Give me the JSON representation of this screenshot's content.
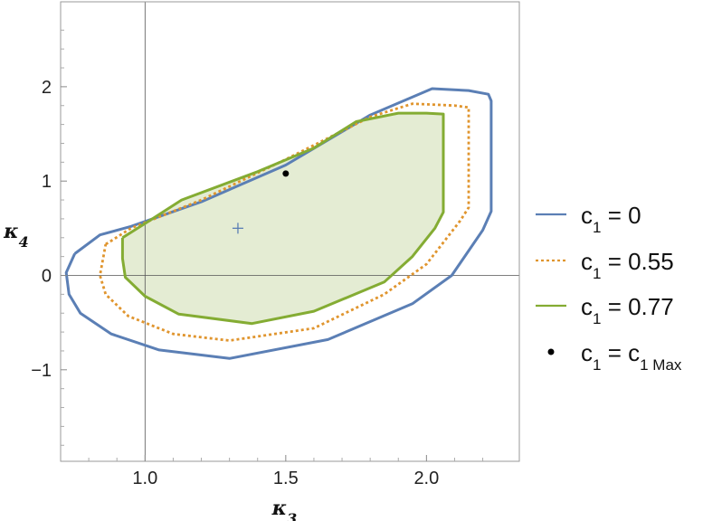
{
  "chart_data": {
    "type": "line",
    "xlabel": "κ3",
    "ylabel": "κ4",
    "xlim": [
      0.7,
      2.33
    ],
    "ylim": [
      -1.97,
      2.9
    ],
    "x_ticks": [
      1.0,
      1.5,
      2.0
    ],
    "x_tick_labels": [
      "1.0",
      "1.5",
      "2.0"
    ],
    "y_ticks": [
      -1,
      0,
      1,
      2
    ],
    "y_tick_labels": [
      "−1",
      "0",
      "1",
      "2"
    ],
    "reference_lines": {
      "x": 1.0,
      "y": 0
    },
    "legend_position": "right",
    "series": [
      {
        "name": "c1 = 0",
        "label_base": "c",
        "label_sub": "1",
        "label_rest": " = 0",
        "style": "solid",
        "color": "#5b7fb5",
        "fill": false,
        "points": [
          [
            0.75,
            0.23
          ],
          [
            0.84,
            0.43
          ],
          [
            0.95,
            0.52
          ],
          [
            1.2,
            0.78
          ],
          [
            1.5,
            1.17
          ],
          [
            1.8,
            1.7
          ],
          [
            2.02,
            1.98
          ],
          [
            2.15,
            1.96
          ],
          [
            2.22,
            1.92
          ],
          [
            2.23,
            1.85
          ],
          [
            2.23,
            0.68
          ],
          [
            2.2,
            0.48
          ],
          [
            2.09,
            0
          ],
          [
            1.95,
            -0.3
          ],
          [
            1.65,
            -0.68
          ],
          [
            1.3,
            -0.88
          ],
          [
            1.05,
            -0.79
          ],
          [
            0.88,
            -0.62
          ],
          [
            0.77,
            -0.4
          ],
          [
            0.73,
            -0.2
          ],
          [
            0.72,
            0.03
          ],
          [
            0.75,
            0.23
          ]
        ]
      },
      {
        "name": "c1 = 0.55",
        "label_base": "c",
        "label_sub": "1",
        "label_rest": " = 0.55",
        "style": "dotted",
        "color": "#e0952e",
        "fill": false,
        "points": [
          [
            0.86,
            0.33
          ],
          [
            0.95,
            0.5
          ],
          [
            1.2,
            0.8
          ],
          [
            1.5,
            1.23
          ],
          [
            1.8,
            1.68
          ],
          [
            1.95,
            1.82
          ],
          [
            2.1,
            1.8
          ],
          [
            2.15,
            1.78
          ],
          [
            2.15,
            0.72
          ],
          [
            2.12,
            0.58
          ],
          [
            2.0,
            0.12
          ],
          [
            1.85,
            -0.2
          ],
          [
            1.6,
            -0.56
          ],
          [
            1.3,
            -0.69
          ],
          [
            1.1,
            -0.62
          ],
          [
            0.94,
            -0.43
          ],
          [
            0.86,
            -0.2
          ],
          [
            0.84,
            0
          ],
          [
            0.86,
            0.33
          ]
        ]
      },
      {
        "name": "c1 = 0.77",
        "label_base": "c",
        "label_sub": "1",
        "label_rest": " = 0.77",
        "style": "solid",
        "color": "#84ac33",
        "fill": true,
        "fill_color": "#e4ecd3",
        "points": [
          [
            0.92,
            0.4
          ],
          [
            1.0,
            0.55
          ],
          [
            1.13,
            0.8
          ],
          [
            1.4,
            1.1
          ],
          [
            1.6,
            1.35
          ],
          [
            1.75,
            1.63
          ],
          [
            1.9,
            1.72
          ],
          [
            2.0,
            1.72
          ],
          [
            2.06,
            1.71
          ],
          [
            2.06,
            0.67
          ],
          [
            2.03,
            0.5
          ],
          [
            1.95,
            0.2
          ],
          [
            1.85,
            -0.07
          ],
          [
            1.6,
            -0.38
          ],
          [
            1.38,
            -0.51
          ],
          [
            1.12,
            -0.41
          ],
          [
            1.0,
            -0.22
          ],
          [
            0.93,
            -0.02
          ],
          [
            0.92,
            0.18
          ],
          [
            0.92,
            0.4
          ]
        ]
      }
    ],
    "markers": [
      {
        "name": "c1 = c1 Max",
        "label_base": "c",
        "label_sub": "1",
        "label_rest": " = c",
        "label_sub2": "1 Max",
        "x": 1.5,
        "y": 1.08,
        "shape": "dot",
        "color": "#000000"
      },
      {
        "x": 1.33,
        "y": 0.5,
        "shape": "plus",
        "color": "#5b7fb5"
      }
    ]
  }
}
